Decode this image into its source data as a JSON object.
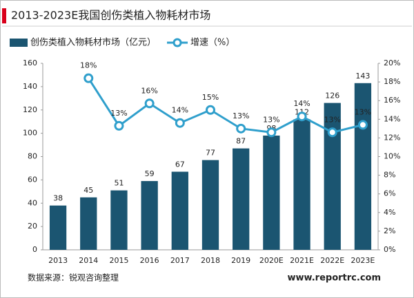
{
  "chart_data": {
    "type": "bar",
    "title": "2013-2023E我国创伤类植入物耗材市场",
    "categories": [
      "2013",
      "2014",
      "2015",
      "2016",
      "2017",
      "2018",
      "2019",
      "2020E",
      "2021E",
      "2022E",
      "2023E"
    ],
    "series": [
      {
        "name": "创伤类植入物耗材市场（亿元）",
        "type": "bar",
        "color": "#1b5571",
        "values": [
          38,
          45,
          51,
          59,
          67,
          77,
          87,
          98,
          112,
          126,
          143
        ]
      },
      {
        "name": "增速（%）",
        "type": "line",
        "axis": "y2",
        "color": "#2f9fcc",
        "values": [
          null,
          18.4,
          13.3,
          15.7,
          13.6,
          15.0,
          13.0,
          12.6,
          14.3,
          12.6,
          13.4
        ],
        "value_labels": [
          null,
          "18%",
          "13%",
          "16%",
          "14%",
          "15%",
          "13%",
          "13%",
          "14%",
          "13%",
          "13%"
        ]
      }
    ],
    "ylim": [
      0,
      160
    ],
    "yticks": [
      0,
      20,
      40,
      60,
      80,
      100,
      120,
      140,
      160
    ],
    "y2lim": [
      0,
      20
    ],
    "y2ticks": [
      {
        "value": 0,
        "label": "0%"
      },
      {
        "value": 2,
        "label": "2%"
      },
      {
        "value": 4,
        "label": "4%"
      },
      {
        "value": 6,
        "label": "6%"
      },
      {
        "value": 8,
        "label": "8%"
      },
      {
        "value": 10,
        "label": "10%"
      },
      {
        "value": 12,
        "label": "12%"
      },
      {
        "value": 14,
        "label": "14%"
      },
      {
        "value": 16,
        "label": "16%"
      },
      {
        "value": 18,
        "label": "18%"
      },
      {
        "value": 20,
        "label": "20%"
      }
    ],
    "legend": "top-left",
    "source": "数据来源：锐观咨询整理",
    "watermark": "www.reportrc.com"
  }
}
